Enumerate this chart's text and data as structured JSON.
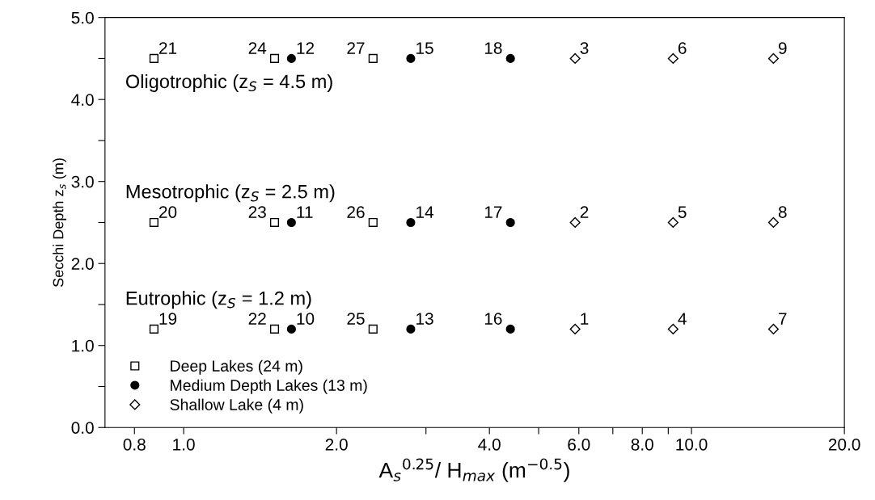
{
  "chart_data": {
    "type": "scatter",
    "xlabel": "A$_{s}$$^{0.25}$/ H$_{max}$ (m$^{−0.5}$)",
    "ylabel": "Secchi Depth z$_{s}$ (m)",
    "log": "x",
    "xlim": [
      0.7,
      20
    ],
    "ylim": [
      0,
      5
    ],
    "xticks": [
      0.8,
      {
        "value": 1,
        "label": "1.0"
      },
      {
        "value": 2,
        "label": "2.0"
      },
      {
        "value": 3,
        "label": null
      },
      {
        "value": 4,
        "label": "4.0"
      },
      {
        "value": 5,
        "label": null
      },
      {
        "value": 6,
        "label": "6.0"
      },
      {
        "value": 7,
        "label": null
      },
      {
        "value": 8,
        "label": "8.0"
      },
      {
        "value": 9,
        "label": null
      },
      {
        "value": 10,
        "label": "10.0"
      },
      {
        "value": 20,
        "label": "20.0"
      }
    ],
    "yticks": [
      {
        "value": 0,
        "label": "0.0"
      },
      {
        "value": 0.5,
        "label": null
      },
      {
        "value": 1,
        "label": "1.0"
      },
      {
        "value": 1.5,
        "label": null
      },
      {
        "value": 2,
        "label": "2.0"
      },
      {
        "value": 2.5,
        "label": null
      },
      {
        "value": 3,
        "label": "3.0"
      },
      {
        "value": 3.5,
        "label": null
      },
      {
        "value": 4,
        "label": "4.0"
      },
      {
        "value": 4.5,
        "label": null
      },
      {
        "value": 5,
        "label": "5.0"
      }
    ],
    "grid": false,
    "legend": "bottom left",
    "series": [
      {
        "name": "Deep Lakes (24 m)",
        "color": "#000000",
        "marker": "square",
        "x": [
          0.874,
          0.874,
          0.874,
          1.51,
          1.51,
          1.51,
          2.36,
          2.36,
          2.36
        ],
        "values": [
          4.5,
          2.5,
          1.2,
          4.5,
          2.5,
          1.2,
          4.5,
          2.5,
          1.2
        ]
      },
      {
        "name": "Medium Depth Lakes (13 m)",
        "color": "#000000",
        "marker": "circle",
        "x": [
          1.63,
          1.63,
          1.63,
          2.8,
          2.8,
          2.8,
          4.4,
          4.4,
          4.4
        ],
        "values": [
          4.5,
          2.5,
          1.2,
          4.5,
          2.5,
          1.2,
          4.5,
          2.5,
          1.2
        ]
      },
      {
        "name": "Shallow Lake (4 m)",
        "color": "#000000",
        "marker": "diamond",
        "x": [
          5.9,
          5.9,
          5.9,
          9.2,
          9.2,
          9.2,
          14.5,
          14.5,
          14.5
        ],
        "values": [
          4.5,
          2.5,
          1.2,
          4.5,
          2.5,
          1.2,
          4.5,
          2.5,
          1.2
        ]
      }
    ],
    "annotations": [
      "Oligotrophic (z$_{S}$ = 4.5 m)",
      "Mesotrophic (z$_{S}$ = 2.5 m)",
      "Eutrophic (z$_{S}$ = 1.2 m)",
      {
        "text": "21",
        "x": 0.874,
        "y": 4.5
      },
      {
        "text": "20",
        "x": 0.874,
        "y": 2.5
      },
      {
        "text": "19",
        "x": 0.874,
        "y": 1.2
      },
      {
        "text": "24",
        "x": 1.51,
        "y": 4.5
      },
      {
        "text": "23",
        "x": 1.51,
        "y": 2.5
      },
      {
        "text": "22",
        "x": 1.51,
        "y": 1.2
      },
      {
        "text": "27",
        "x": 2.36,
        "y": 4.5
      },
      {
        "text": "26",
        "x": 2.36,
        "y": 2.5
      },
      {
        "text": "25",
        "x": 2.36,
        "y": 1.2
      },
      {
        "text": "12",
        "x": 1.63,
        "y": 4.5
      },
      {
        "text": "11",
        "x": 1.63,
        "y": 2.5
      },
      {
        "text": "10",
        "x": 1.63,
        "y": 1.2
      },
      {
        "text": "15",
        "x": 2.8,
        "y": 4.5
      },
      {
        "text": "14",
        "x": 2.8,
        "y": 2.5
      },
      {
        "text": "13",
        "x": 2.8,
        "y": 1.2
      },
      {
        "text": "18",
        "x": 4.4,
        "y": 4.5
      },
      {
        "text": "17",
        "x": 4.4,
        "y": 2.5
      },
      {
        "text": "16",
        "x": 4.4,
        "y": 1.2
      },
      {
        "text": "3",
        "x": 5.9,
        "y": 4.5
      },
      {
        "text": "2",
        "x": 5.9,
        "y": 2.5
      },
      {
        "text": "1",
        "x": 5.9,
        "y": 1.2
      },
      {
        "text": "6",
        "x": 9.2,
        "y": 4.5
      },
      {
        "text": "5",
        "x": 9.2,
        "y": 2.5
      },
      {
        "text": "4",
        "x": 9.2,
        "y": 1.2
      },
      {
        "text": "9",
        "x": 14.5,
        "y": 4.5
      },
      {
        "text": "8",
        "x": 14.5,
        "y": 2.5
      },
      {
        "text": "7",
        "x": 14.5,
        "y": 1.2
      }
    ]
  }
}
